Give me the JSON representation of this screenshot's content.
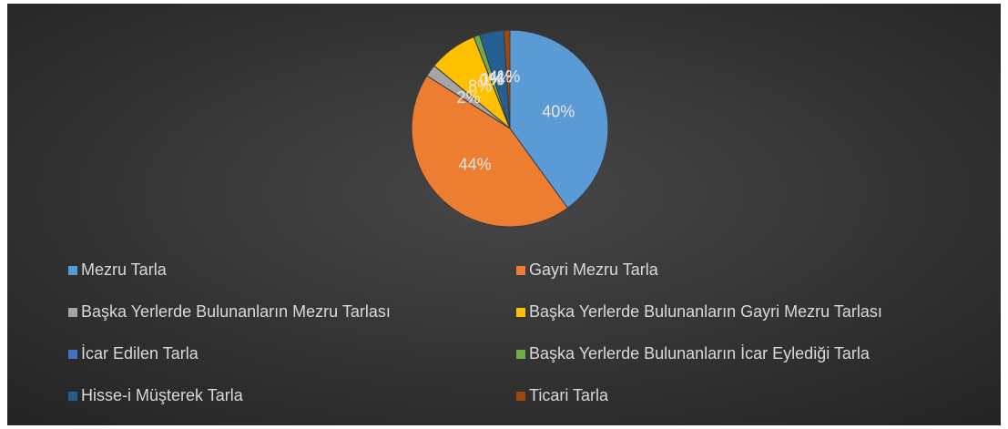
{
  "chart_data": {
    "type": "pie",
    "categories": [
      "Mezru Tarla",
      "Gayri Mezru Tarla",
      "Başka Yerlerde Bulunanların Mezru Tarlası",
      "Başka Yerlerde Bulunanların Gayri Mezru Tarlası",
      "İcar Edilen Tarla",
      "Başka Yerlerde Bulunanların İcar Eylediği Tarla",
      "Hisse-i Müşterek Tarla",
      "Ticari Tarla"
    ],
    "values": [
      40,
      44,
      2,
      8,
      0,
      1,
      4,
      1
    ],
    "value_labels": [
      "40%",
      "44%",
      "2%",
      "8%",
      "0%",
      "1%",
      "4%",
      "1%"
    ],
    "colors": [
      "#5b9bd5",
      "#ed7d31",
      "#a5a5a5",
      "#ffc000",
      "#4472c4",
      "#70ad47",
      "#255e91",
      "#9e480e"
    ],
    "legend": "bottom"
  }
}
